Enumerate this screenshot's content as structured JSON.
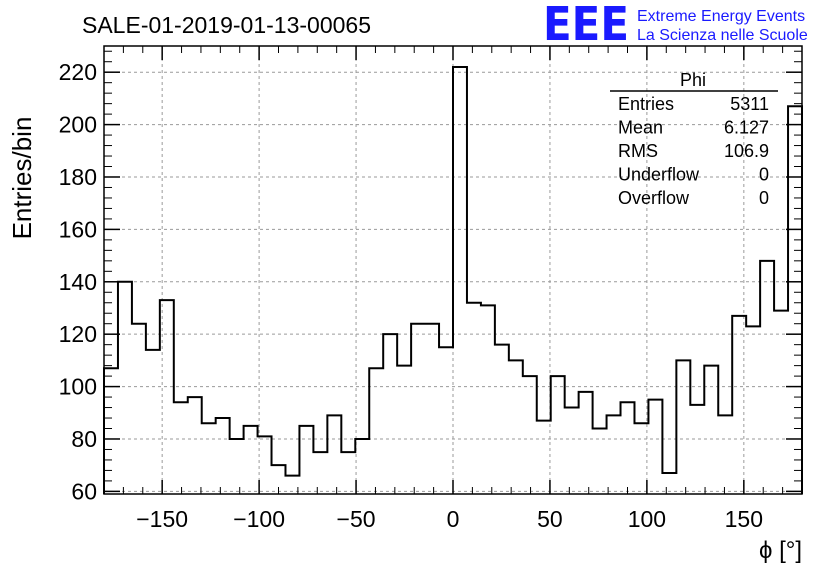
{
  "chart_data": {
    "type": "bar",
    "histogram": true,
    "title": "SALE-01-2019-01-13-00065",
    "xlabel": "ϕ [°]",
    "ylabel": "Entries/bin",
    "xlim": [
      -180,
      180
    ],
    "ylim": [
      59,
      230
    ],
    "bin_width": 7.2,
    "x_ticks": [
      -150,
      -100,
      -50,
      0,
      50,
      100,
      150
    ],
    "x_tick_labels": [
      "−150",
      "−100",
      "−50",
      "0",
      "50",
      "100",
      "150"
    ],
    "y_ticks": [
      60,
      80,
      100,
      120,
      140,
      160,
      180,
      200,
      220
    ],
    "y_tick_labels": [
      "60",
      "80",
      "100",
      "120",
      "140",
      "160",
      "180",
      "200",
      "220"
    ],
    "grid": true,
    "series": [
      {
        "name": "Phi",
        "values": [
          107,
          140,
          124,
          114,
          133,
          94,
          96,
          86,
          88,
          80,
          85,
          81,
          70,
          66,
          85,
          75,
          89,
          75,
          80,
          107,
          120,
          108,
          124,
          124,
          115,
          222,
          132,
          131,
          116,
          110,
          104,
          87,
          104,
          92,
          98,
          84,
          89,
          94,
          86,
          95,
          67,
          110,
          93,
          108,
          89,
          127,
          123,
          148,
          129,
          207
        ]
      }
    ],
    "legend": {
      "title": "Phi",
      "placement": "top-right",
      "rows": [
        {
          "label": "Entries",
          "value": "5311"
        },
        {
          "label": "Mean",
          "value": "6.127"
        },
        {
          "label": "RMS",
          "value": "106.9"
        },
        {
          "label": "Underflow",
          "value": "0"
        },
        {
          "label": "Overflow",
          "value": "0"
        }
      ]
    }
  },
  "logo": {
    "mark": "EEE",
    "line1": "Extreme Energy Events",
    "line2": "La Scienza nelle Scuole",
    "color": "#1a1aff"
  }
}
